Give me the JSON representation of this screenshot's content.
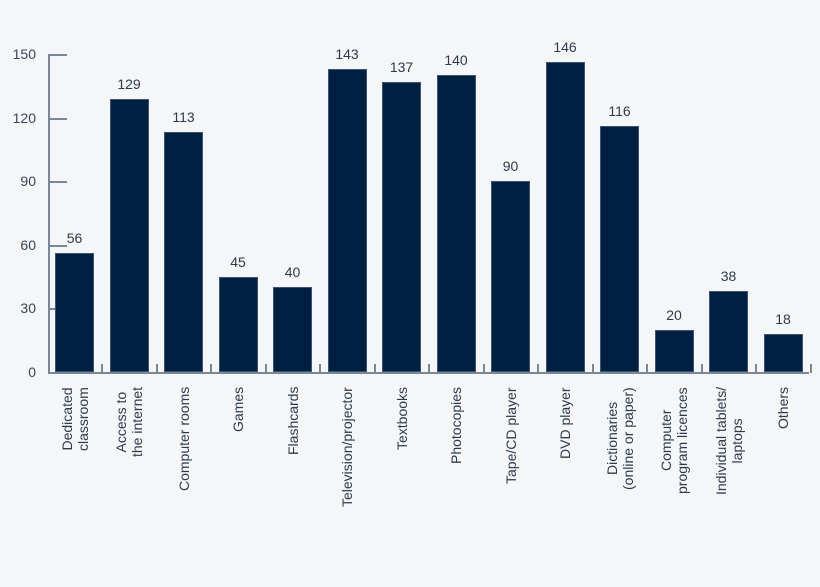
{
  "chart_data": {
    "type": "bar",
    "title": "",
    "xlabel": "",
    "ylabel": "",
    "ylim": [
      0,
      150
    ],
    "yticks": [
      0,
      30,
      60,
      90,
      120,
      150
    ],
    "grid": false,
    "bar_color": "#011f41",
    "background": "#f5f6f7",
    "categories": [
      "Dedicated classroom",
      "Access to the internet",
      "Computer rooms",
      "Games",
      "Flashcards",
      "Television/projector",
      "Textbooks",
      "Photocopies",
      "Tape/CD player",
      "DVD player",
      "Dictionaries (online or paper)",
      "Computer program licences",
      "Individual tablets/ laptops",
      "Others"
    ],
    "category_lines": [
      [
        "Dedicated",
        "classroom"
      ],
      [
        "Access to",
        "the internet"
      ],
      [
        "Computer rooms"
      ],
      [
        "Games"
      ],
      [
        "Flashcards"
      ],
      [
        "Television/projector"
      ],
      [
        "Textbooks"
      ],
      [
        "Photocopies"
      ],
      [
        "Tape/CD player"
      ],
      [
        "DVD player"
      ],
      [
        "Dictionaries",
        "(online or paper)"
      ],
      [
        "Computer",
        "program licences"
      ],
      [
        "Individual tablets/",
        "laptops"
      ],
      [
        "Others"
      ]
    ],
    "values": [
      56,
      129,
      113,
      45,
      40,
      143,
      137,
      140,
      90,
      146,
      116,
      20,
      38,
      18
    ]
  }
}
